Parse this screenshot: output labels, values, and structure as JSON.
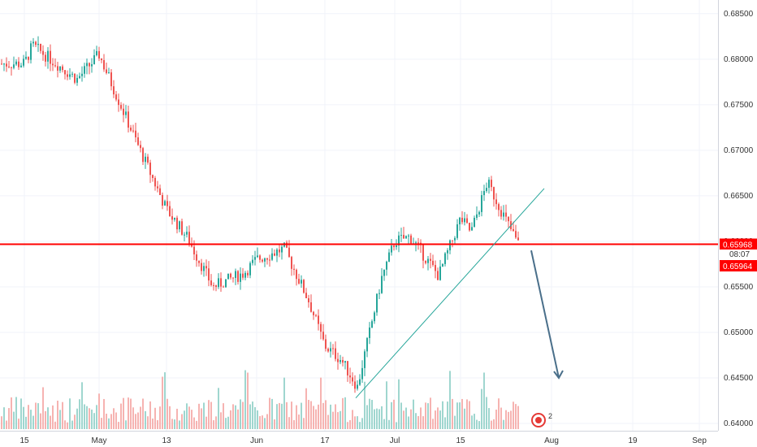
{
  "colors": {
    "up": "#26a69a",
    "down": "#ef5350",
    "up_volume": "#9fd6cf",
    "down_volume": "#f6b3b1",
    "grid": "#f0f3fa",
    "axis_border": "#d1d4dc",
    "support_line": "#ff0000",
    "trendline": "#26a69a",
    "arrow": "#4a6f8a",
    "price_box": "#ff0000"
  },
  "chart_data": {
    "type": "candlestick",
    "symbol_visible": false,
    "y_axis": {
      "position": "right",
      "ylim": [
        0.6392,
        0.6865
      ],
      "ticks": [
        "0.68500",
        "0.68000",
        "0.67500",
        "0.67000",
        "0.66500",
        "0.66000",
        "0.65500",
        "0.65000",
        "0.64500",
        "0.64000"
      ]
    },
    "x_axis": {
      "ticks": [
        "15",
        "May",
        "13",
        "Jun",
        "17",
        "Jul",
        "15",
        "Aug",
        "19",
        "Sep"
      ]
    },
    "grid": true,
    "path_anchors": [
      [
        "15",
        0.6795
      ],
      [
        "May",
        0.6805
      ],
      [
        "13",
        0.6635
      ],
      [
        "Jun",
        0.658
      ],
      [
        "17",
        0.6485
      ],
      [
        "Jul",
        0.66
      ],
      [
        "15",
        0.6625
      ],
      [
        "last",
        0.6597
      ]
    ],
    "horizontal_level": {
      "price": "0.65968",
      "label": "0.65968"
    },
    "countdown": "08:07",
    "last_price_label": "0.65964",
    "trendline": {
      "from": [
        "17",
        0.6428
      ],
      "to": [
        "Aug",
        0.6658
      ]
    },
    "projection_arrow": {
      "from": [
        "Jul",
        0.659
      ],
      "to": [
        "Aug",
        0.645
      ]
    },
    "volume": {
      "shown": true
    },
    "event_marker": {
      "count": "2"
    }
  }
}
